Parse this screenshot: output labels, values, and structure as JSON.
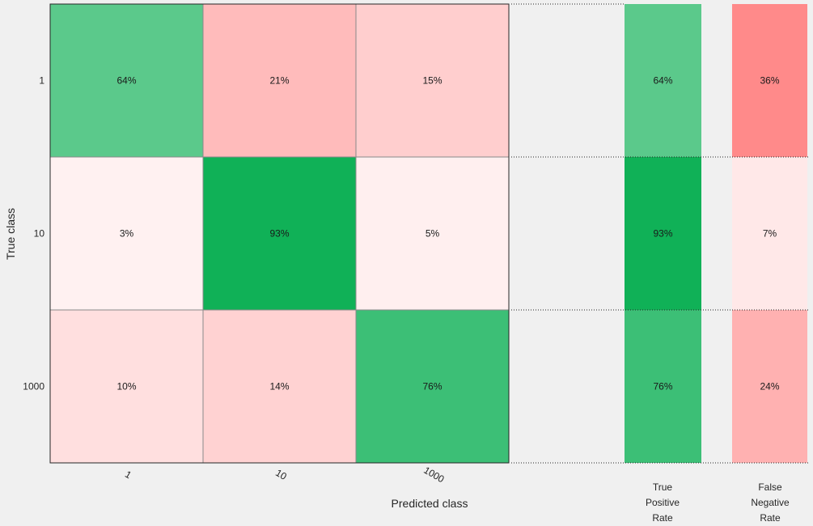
{
  "chart_data": {
    "type": "heatmap",
    "title": "",
    "xlabel": "Predicted class",
    "ylabel": "True class",
    "classes": [
      "1",
      "10",
      "1000"
    ],
    "matrix_percent": [
      [
        64,
        21,
        15
      ],
      [
        3,
        93,
        5
      ],
      [
        10,
        14,
        76
      ]
    ],
    "matrix_labels": [
      [
        "64%",
        "21%",
        "15%"
      ],
      [
        "3%",
        "93%",
        "5%"
      ],
      [
        "10%",
        "14%",
        "76%"
      ]
    ],
    "row_summary": {
      "true_positive_rate": [
        64,
        93,
        76
      ],
      "true_positive_rate_labels": [
        "64%",
        "93%",
        "76%"
      ],
      "false_negative_rate": [
        36,
        7,
        24
      ],
      "false_negative_rate_labels": [
        "36%",
        "7%",
        "24%"
      ]
    },
    "summary_headers": {
      "tpr": [
        "True",
        "Positive",
        "Rate"
      ],
      "fnr": [
        "False",
        "Negative",
        "Rate"
      ]
    },
    "colors": {
      "positive": "#10b157",
      "negative": "#ff8a8a",
      "background": "#f0f0f0"
    }
  }
}
